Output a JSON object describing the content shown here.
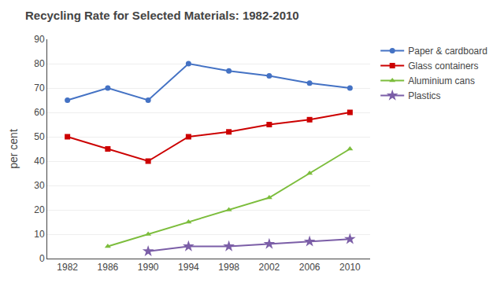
{
  "chart_data": {
    "type": "line",
    "title": "Recycling Rate for Selected Materials: 1982-2010",
    "ylabel": "per cent",
    "x": [
      1982,
      1986,
      1990,
      1994,
      1998,
      2002,
      2006,
      2010
    ],
    "series": [
      {
        "name": "Paper & cardboard",
        "color": "#4472C4",
        "marker": "circle",
        "values": [
          65,
          70,
          65,
          80,
          77,
          75,
          72,
          70
        ]
      },
      {
        "name": "Glass containers",
        "color": "#CC0000",
        "marker": "square",
        "values": [
          50,
          45,
          40,
          50,
          52,
          55,
          57,
          60
        ]
      },
      {
        "name": "Aluminium cans",
        "color": "#7CBD3C",
        "marker": "triangle",
        "values": [
          null,
          5,
          10,
          15,
          20,
          25,
          35,
          45
        ]
      },
      {
        "name": "Plastics",
        "color": "#7B5EA7",
        "marker": "star",
        "values": [
          null,
          null,
          3,
          5,
          5,
          6,
          7,
          8
        ]
      }
    ],
    "xlim": [
      1980,
      2012
    ],
    "xticks": [
      1982,
      1986,
      1990,
      1994,
      1998,
      2002,
      2006,
      2010
    ],
    "ylim": [
      0,
      90
    ],
    "yticks": [
      0,
      10,
      20,
      30,
      40,
      50,
      60,
      70,
      80,
      90
    ],
    "grid": "y",
    "legend": "right"
  }
}
